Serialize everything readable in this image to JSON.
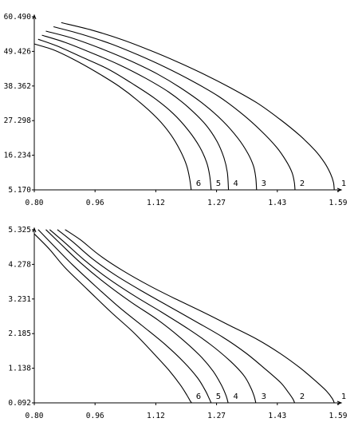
{
  "chart_data": [
    {
      "type": "line",
      "xlim": [
        0.8,
        1.59
      ],
      "ylim": [
        5.17,
        60.49
      ],
      "x_ticks": [
        "0.80",
        "0.96",
        "1.12",
        "1.27",
        "1.43",
        "1.59"
      ],
      "y_ticks": [
        "5.170",
        "16.234",
        "27.298",
        "38.362",
        "49.426",
        "60.490"
      ],
      "grid": false,
      "series": [
        {
          "name": "1",
          "x": [
            0.87,
            0.95,
            1.03,
            1.1,
            1.17,
            1.24,
            1.31,
            1.38,
            1.44,
            1.49,
            1.53,
            1.555,
            1.57,
            1.578,
            1.58
          ],
          "y": [
            58.6,
            56.2,
            53.1,
            49.8,
            46.2,
            42.2,
            37.8,
            32.9,
            27.6,
            22.6,
            17.8,
            13.8,
            10.4,
            7.6,
            5.17
          ]
        },
        {
          "name": "2",
          "x": [
            0.85,
            0.92,
            1.0,
            1.07,
            1.14,
            1.21,
            1.28,
            1.34,
            1.39,
            1.43,
            1.455,
            1.47,
            1.476,
            1.478
          ],
          "y": [
            57.3,
            55.0,
            51.8,
            48.3,
            44.4,
            40.0,
            35.0,
            29.5,
            24.0,
            18.8,
            14.4,
            10.8,
            7.8,
            5.17
          ]
        },
        {
          "name": "3",
          "x": [
            0.83,
            0.9,
            0.98,
            1.05,
            1.12,
            1.18,
            1.24,
            1.29,
            1.33,
            1.355,
            1.37,
            1.376,
            1.378
          ],
          "y": [
            55.9,
            53.6,
            50.0,
            46.4,
            42.2,
            37.8,
            32.6,
            27.2,
            21.6,
            16.9,
            12.8,
            9.0,
            5.17
          ]
        },
        {
          "name": "4",
          "x": [
            0.82,
            0.88,
            0.95,
            1.02,
            1.09,
            1.15,
            1.2,
            1.245,
            1.275,
            1.293,
            1.302,
            1.305
          ],
          "y": [
            54.6,
            52.3,
            48.9,
            45.2,
            40.8,
            36.4,
            31.6,
            26.1,
            20.7,
            15.5,
            10.8,
            5.17
          ]
        },
        {
          "name": "5",
          "x": [
            0.81,
            0.86,
            0.92,
            0.99,
            1.05,
            1.11,
            1.16,
            1.2,
            1.23,
            1.248,
            1.256,
            1.26
          ],
          "y": [
            53.3,
            51.1,
            47.8,
            43.9,
            39.5,
            34.7,
            29.7,
            24.3,
            18.9,
            14.0,
            9.8,
            5.17
          ]
        },
        {
          "name": "6",
          "x": [
            0.8,
            0.85,
            0.9,
            0.96,
            1.02,
            1.07,
            1.12,
            1.155,
            1.18,
            1.196,
            1.204,
            1.208
          ],
          "y": [
            51.8,
            49.9,
            47.0,
            42.9,
            38.3,
            33.6,
            28.0,
            22.8,
            17.6,
            13.0,
            8.8,
            5.17
          ]
        }
      ],
      "curve_label_x": [
        1.59,
        1.482,
        1.382,
        1.309,
        1.264,
        1.212
      ]
    },
    {
      "type": "line",
      "xlim": [
        0.8,
        1.59
      ],
      "ylim": [
        0.092,
        5.325
      ],
      "x_ticks": [
        "0.80",
        "0.96",
        "1.12",
        "1.27",
        "1.43",
        "1.59"
      ],
      "y_ticks": [
        "0.092",
        "1.138",
        "2.185",
        "3.231",
        "4.278",
        "5.325"
      ],
      "grid": false,
      "series": [
        {
          "name": "1",
          "x": [
            0.88,
            0.92,
            0.97,
            1.03,
            1.1,
            1.17,
            1.24,
            1.31,
            1.38,
            1.44,
            1.49,
            1.53,
            1.56,
            1.575,
            1.58
          ],
          "y": [
            5.33,
            5.02,
            4.55,
            4.09,
            3.63,
            3.22,
            2.83,
            2.42,
            2.01,
            1.58,
            1.16,
            0.77,
            0.45,
            0.22,
            0.092
          ]
        },
        {
          "name": "2",
          "x": [
            0.86,
            0.9,
            0.95,
            1.01,
            1.08,
            1.15,
            1.22,
            1.29,
            1.35,
            1.4,
            1.44,
            1.46,
            1.472,
            1.477
          ],
          "y": [
            5.33,
            4.96,
            4.46,
            3.96,
            3.47,
            3.01,
            2.55,
            2.08,
            1.6,
            1.12,
            0.71,
            0.42,
            0.22,
            0.092
          ]
        },
        {
          "name": "3",
          "x": [
            0.84,
            0.88,
            0.93,
            0.99,
            1.06,
            1.13,
            1.2,
            1.26,
            1.31,
            1.345,
            1.363,
            1.372,
            1.376
          ],
          "y": [
            5.33,
            4.93,
            4.41,
            3.87,
            3.33,
            2.84,
            2.33,
            1.84,
            1.35,
            0.92,
            0.55,
            0.28,
            0.092
          ]
        },
        {
          "name": "4",
          "x": [
            0.83,
            0.87,
            0.92,
            0.98,
            1.05,
            1.12,
            1.18,
            1.23,
            1.265,
            1.287,
            1.299,
            1.304
          ],
          "y": [
            5.33,
            4.88,
            4.33,
            3.75,
            3.15,
            2.61,
            2.06,
            1.53,
            1.05,
            0.62,
            0.3,
            0.092
          ]
        },
        {
          "name": "5",
          "x": [
            0.81,
            0.85,
            0.9,
            0.96,
            1.02,
            1.08,
            1.14,
            1.19,
            1.225,
            1.245,
            1.255,
            1.26
          ],
          "y": [
            5.33,
            4.85,
            4.26,
            3.61,
            2.99,
            2.43,
            1.86,
            1.31,
            0.84,
            0.46,
            0.22,
            0.092
          ]
        },
        {
          "name": "6",
          "x": [
            0.8,
            0.84,
            0.88,
            0.94,
            1.0,
            1.06,
            1.11,
            1.15,
            1.18,
            1.197,
            1.205,
            1.209
          ],
          "y": [
            5.2,
            4.73,
            4.18,
            3.5,
            2.83,
            2.2,
            1.59,
            1.08,
            0.63,
            0.32,
            0.16,
            0.092
          ]
        }
      ],
      "curve_label_x": [
        1.59,
        1.482,
        1.382,
        1.309,
        1.264,
        1.212
      ]
    }
  ]
}
